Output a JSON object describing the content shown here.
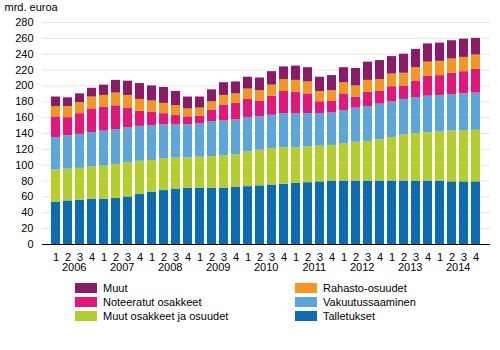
{
  "chart_data": {
    "type": "bar",
    "stacked": true,
    "legend": "bottom",
    "grid": true,
    "y_label": "mrd. euroa",
    "categories": [
      "1",
      "2",
      "3",
      "4",
      "1",
      "2",
      "3",
      "4",
      "1",
      "2",
      "3",
      "4",
      "1",
      "2",
      "3",
      "4",
      "1",
      "2",
      "3",
      "4",
      "1",
      "2",
      "3",
      "4",
      "1",
      "2",
      "3",
      "4",
      "1",
      "2",
      "3",
      "4",
      "1",
      "2",
      "3",
      "4"
    ],
    "x_group_labels": [
      "2006",
      "2007",
      "2008",
      "2009",
      "2010",
      "2011",
      "2012",
      "2013",
      "2014"
    ],
    "ylim": [
      0,
      280
    ],
    "yticks": [
      0,
      20,
      40,
      60,
      80,
      100,
      120,
      140,
      160,
      180,
      200,
      220,
      240,
      260,
      280
    ],
    "series": [
      {
        "name": "Talletukset",
        "color": "#0b6cb3",
        "values": [
          53,
          55,
          56,
          57,
          57,
          58,
          60,
          63,
          66,
          68,
          70,
          71,
          71,
          71,
          71,
          72,
          73,
          74,
          75,
          76,
          77,
          78,
          79,
          80,
          80,
          80,
          80,
          80,
          80,
          80,
          80,
          80,
          80,
          79,
          79,
          79
        ]
      },
      {
        "name": "Muut osakkeet ja osuudet",
        "color": "#b5cf2a",
        "values": [
          41,
          40,
          40,
          41,
          42,
          43,
          43,
          42,
          40,
          40,
          39,
          38,
          39,
          40,
          41,
          41,
          44,
          45,
          46,
          46,
          45,
          45,
          45,
          45,
          47,
          49,
          50,
          52,
          55,
          58,
          60,
          61,
          62,
          64,
          64,
          65
        ]
      },
      {
        "name": "Vakuutussaaminen",
        "color": "#5ba6dc",
        "values": [
          41,
          42,
          43,
          43,
          44,
          44,
          44,
          44,
          44,
          43,
          42,
          42,
          42,
          44,
          44,
          44,
          43,
          42,
          42,
          43,
          43,
          42,
          41,
          41,
          42,
          43,
          44,
          45,
          45,
          45,
          45,
          46,
          46,
          46,
          47,
          47
        ]
      },
      {
        "name": "Noteeratut osakkeet",
        "color": "#e5157a",
        "values": [
          26,
          23,
          26,
          30,
          30,
          30,
          25,
          19,
          17,
          14,
          12,
          10,
          10,
          14,
          20,
          21,
          23,
          20,
          24,
          28,
          27,
          25,
          15,
          15,
          21,
          14,
          18,
          16,
          19,
          17,
          21,
          25,
          25,
          27,
          28,
          30
        ]
      },
      {
        "name": "Rahasto-osuudet",
        "color": "#f5961e",
        "values": [
          13,
          14,
          14,
          15,
          15,
          16,
          16,
          15,
          14,
          13,
          12,
          10,
          10,
          11,
          12,
          12,
          13,
          13,
          14,
          15,
          15,
          15,
          13,
          13,
          14,
          14,
          15,
          15,
          16,
          16,
          17,
          18,
          18,
          18,
          18,
          18
        ]
      },
      {
        "name": "Muut",
        "color": "#8b1a6b",
        "values": [
          12,
          11,
          11,
          11,
          13,
          16,
          18,
          20,
          19,
          20,
          18,
          15,
          14,
          15,
          16,
          15,
          15,
          16,
          17,
          16,
          18,
          18,
          18,
          19,
          19,
          22,
          23,
          24,
          22,
          24,
          23,
          23,
          23,
          23,
          23,
          21
        ]
      }
    ]
  }
}
